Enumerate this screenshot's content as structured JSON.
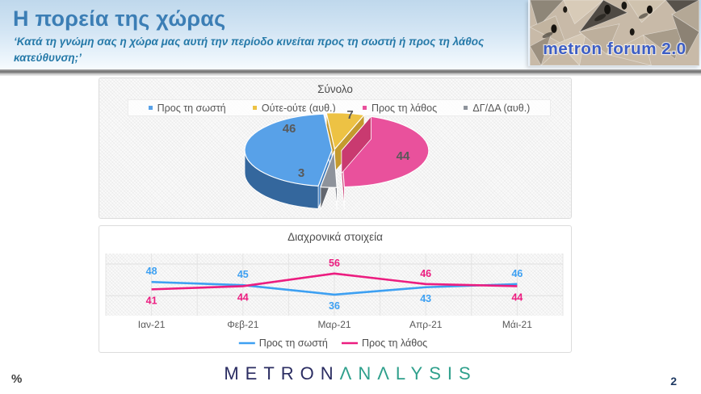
{
  "header": {
    "title": "Η πορεία της χώρας",
    "subtitle": "‘Κατά τη γνώμη σας η χώρα μας αυτή την περίοδο κινείται προς τη σωστή ή προς τη λάθος κατεύθυνση;’",
    "logo_text": "metron forum 2.0"
  },
  "pie_panel": {
    "title": "Σύνολο",
    "legend": [
      {
        "label": "Προς τη σωστή",
        "color": "#58a1e8"
      },
      {
        "label": "Ούτε-ούτε (αυθ.)",
        "color": "#edc244"
      },
      {
        "label": "Προς τη λάθος",
        "color": "#e9519c"
      },
      {
        "label": "ΔΓ/ΔΑ (αυθ.)",
        "color": "#8e939b"
      }
    ]
  },
  "line_panel": {
    "title": "Διαχρονικά στοιχεία"
  },
  "footer": {
    "percent_label": "%",
    "brand_primary": "METRON",
    "brand_secondary": "ΛNΛLYSIS",
    "page_number": "2"
  },
  "chart_data": [
    {
      "type": "pie",
      "style": "3d-exploded",
      "title": "Σύνολο",
      "labels": [
        "Προς τη σωστή",
        "Ούτε-ούτε (αυθ.)",
        "Προς τη λάθος",
        "ΔΓ/ΔΑ (αυθ.)"
      ],
      "values": [
        46,
        7,
        44,
        3
      ],
      "colors": [
        "#58a1e8",
        "#edc244",
        "#e9519c",
        "#8e939b"
      ],
      "side_colors": [
        "#3f7dc0",
        "#c49a2e",
        "#c93a70",
        "#63676f"
      ],
      "start_angle_deg": 189,
      "legend_position": "top",
      "label_color": "#595959"
    },
    {
      "type": "line",
      "title": "Διαχρονικά στοιχεία",
      "categories": [
        "Ιαν-21",
        "Φεβ-21",
        "Μαρ-21",
        "Απρ-21",
        "Μάι-21"
      ],
      "series": [
        {
          "name": "Προς τη σωστή",
          "color": "#3da0f2",
          "values": [
            48,
            45,
            36,
            43,
            46
          ]
        },
        {
          "name": "Προς τη λάθος",
          "color": "#ec1d80",
          "values": [
            41,
            44,
            56,
            46,
            44
          ]
        }
      ],
      "ylim": [
        16,
        75
      ],
      "grid": true,
      "legend_position": "bottom",
      "axis_text_color": "#595959"
    }
  ]
}
